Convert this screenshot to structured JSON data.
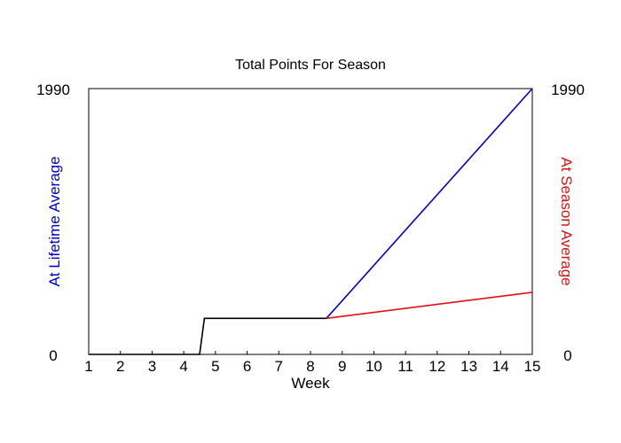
{
  "chart_data": {
    "type": "line",
    "title": "Total Points For Season",
    "xlabel": "Week",
    "ylabel_left": "At Lifetime Average",
    "ylabel_right": "At Season Average",
    "xlim": [
      1,
      15
    ],
    "ylim": [
      0,
      1990
    ],
    "x_ticks": [
      "1",
      "2",
      "3",
      "4",
      "5",
      "6",
      "7",
      "8",
      "9",
      "10",
      "11",
      "12",
      "13",
      "14",
      "15"
    ],
    "y_tick_labels": {
      "left_min": "0",
      "left_max": "1990",
      "right_min": "0",
      "right_max": "1990"
    },
    "grid": false,
    "colors": {
      "lifetime": "#0000cc",
      "season": "#e01010",
      "actual": "#000000"
    },
    "series": [
      {
        "key": "actual",
        "x": [
          1,
          4.5,
          4.65,
          8.5
        ],
        "y": [
          0,
          0,
          270,
          270
        ]
      },
      {
        "key": "lifetime",
        "x": [
          8.5,
          15
        ],
        "y": [
          270,
          1990
        ]
      },
      {
        "key": "season",
        "x": [
          8.5,
          15
        ],
        "y": [
          270,
          465
        ]
      }
    ]
  }
}
